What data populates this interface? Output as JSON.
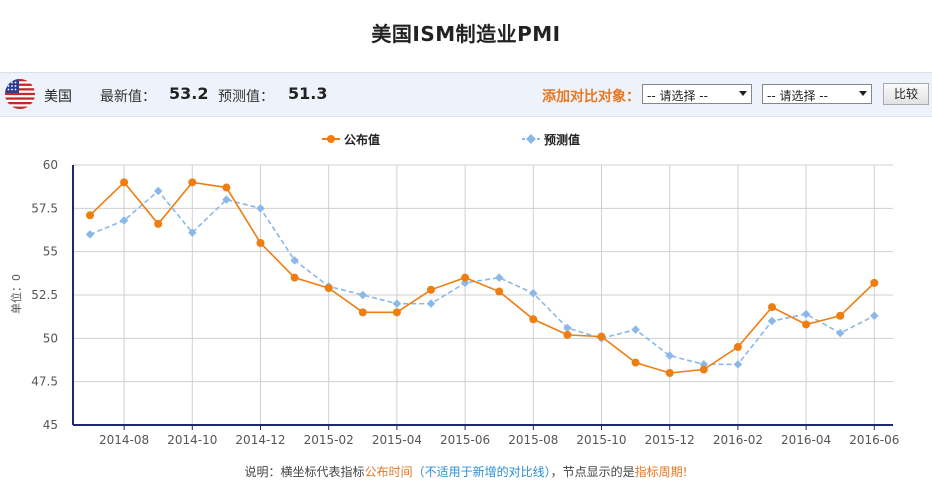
{
  "page": {
    "title": "美国ISM制造业PMI"
  },
  "info_bar": {
    "country": "美国",
    "latest_label": "最新值：",
    "latest_value": "53.2",
    "forecast_label": "预测值：",
    "forecast_value": "51.3",
    "compare_label": "添加对比对象：",
    "select1": "-- 请选择 --",
    "select2": "-- 请选择 --",
    "compare_button": "比较"
  },
  "note": {
    "prefix": "说明：横坐标代表指标",
    "highlight1": "公布时间",
    "paren_open": "（",
    "highlight2": "不适用于新增的对比线",
    "paren_close": "）",
    "middle": "，节点显示的是",
    "highlight3": "指标周期!"
  },
  "colors": {
    "published": "#f07d10",
    "forecast": "#8ab8e8",
    "accent": "#e87722",
    "axis": "#1a2a6c"
  },
  "chart_data": {
    "type": "line",
    "ylabel": "单位：0",
    "ylim": [
      45,
      60
    ],
    "yticks": [
      "45",
      "47.5",
      "50",
      "52.5",
      "55",
      "57.5",
      "60"
    ],
    "ytick_values": [
      45,
      47.5,
      50,
      52.5,
      55,
      57.5,
      60
    ],
    "xticks": [
      "2014-08",
      "2014-10",
      "2014-12",
      "2015-02",
      "2015-04",
      "2015-06",
      "2015-08",
      "2015-10",
      "2015-12",
      "2016-02",
      "2016-04",
      "2016-06"
    ],
    "x": [
      "2014-07",
      "2014-08",
      "2014-09",
      "2014-10",
      "2014-11",
      "2014-12",
      "2015-01",
      "2015-02",
      "2015-03",
      "2015-04",
      "2015-05",
      "2015-06",
      "2015-07",
      "2015-08",
      "2015-09",
      "2015-10",
      "2015-11",
      "2015-12",
      "2016-01",
      "2016-02",
      "2016-03",
      "2016-04",
      "2016-05",
      "2016-06"
    ],
    "series": [
      {
        "name": "公布值",
        "values": [
          57.1,
          59.0,
          56.6,
          59.0,
          58.7,
          55.5,
          53.5,
          52.9,
          51.5,
          51.5,
          52.8,
          53.5,
          52.7,
          51.1,
          50.2,
          50.1,
          48.6,
          48.0,
          48.2,
          49.5,
          51.8,
          50.8,
          51.3,
          53.2
        ]
      },
      {
        "name": "预测值",
        "values": [
          56.0,
          56.8,
          58.5,
          56.1,
          58.0,
          57.5,
          54.5,
          53.0,
          52.5,
          52.0,
          52.0,
          53.2,
          53.5,
          52.6,
          50.6,
          50.0,
          50.5,
          49.0,
          48.5,
          48.5,
          51.0,
          51.4,
          50.3,
          51.3
        ]
      }
    ],
    "grid": true,
    "legend_position": "top-center"
  }
}
